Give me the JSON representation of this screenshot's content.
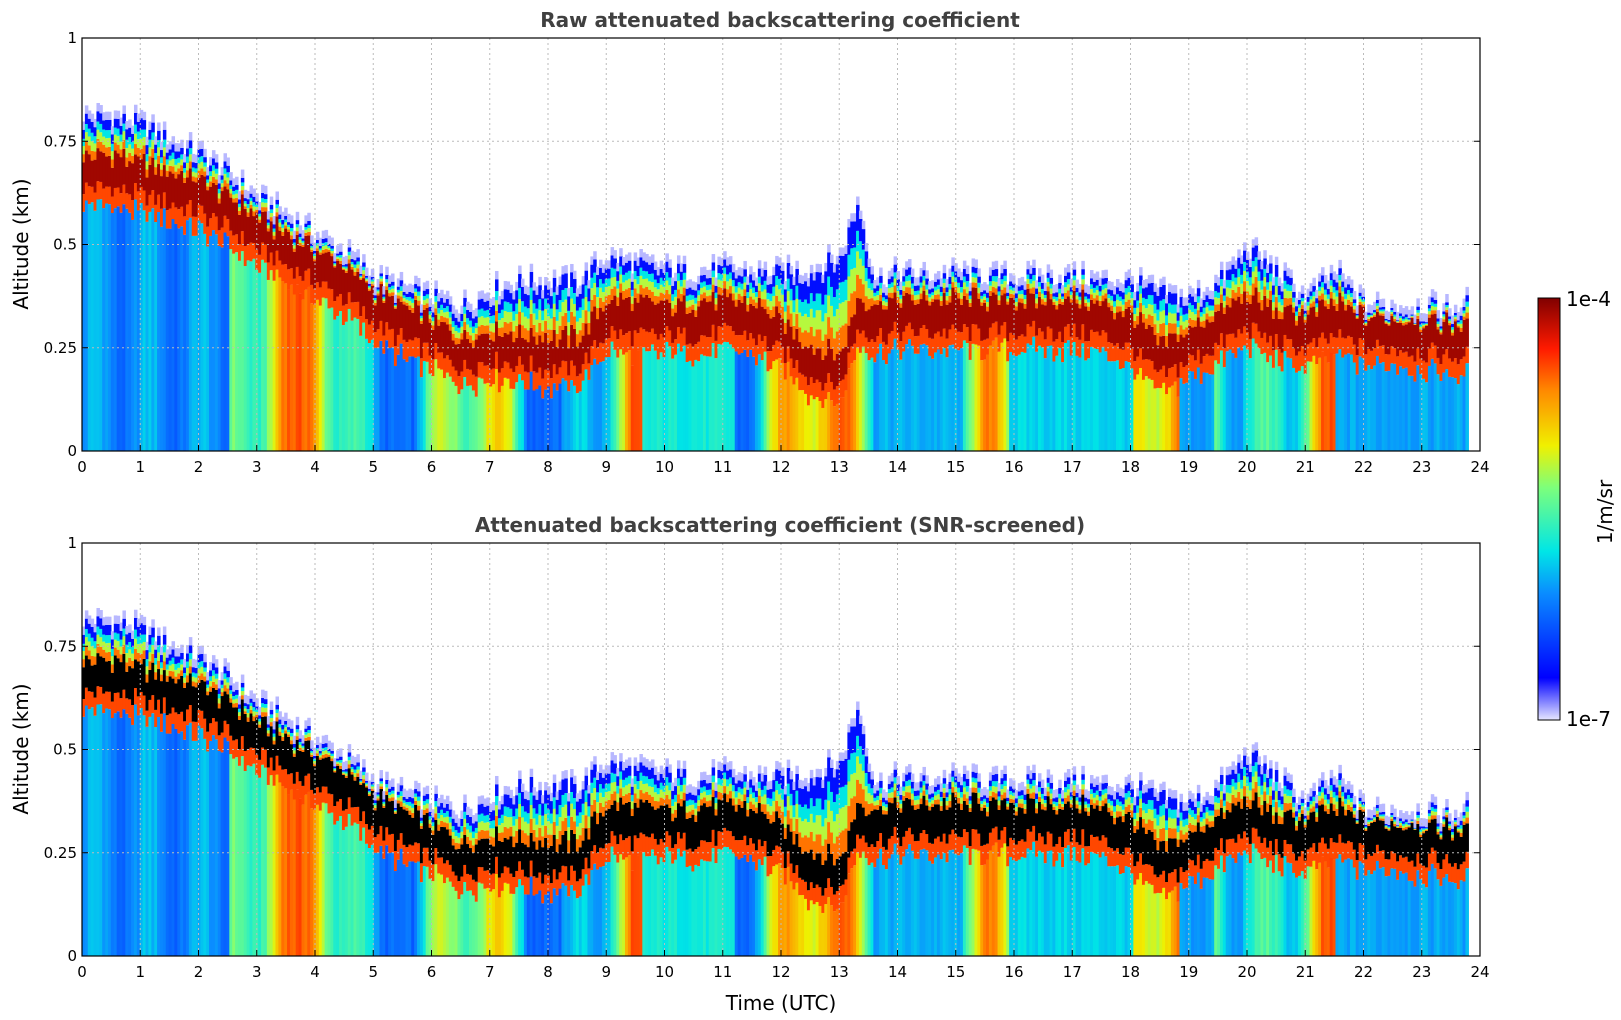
{
  "chart_data": [
    {
      "type": "heatmap",
      "title": "Raw attenuated backscattering coefficient",
      "xlabel": "",
      "ylabel": "Altitude (km)",
      "xlim": [
        0,
        24
      ],
      "ylim": [
        0,
        1
      ],
      "x_ticks": [
        "0",
        "1",
        "2",
        "3",
        "4",
        "5",
        "6",
        "7",
        "8",
        "9",
        "10",
        "11",
        "12",
        "13",
        "14",
        "15",
        "16",
        "17",
        "18",
        "19",
        "20",
        "21",
        "22",
        "23",
        "24"
      ],
      "y_ticks": [
        "0",
        "0.25",
        "0.5",
        "0.75",
        "1"
      ],
      "grid": true,
      "screened": false
    },
    {
      "type": "heatmap",
      "title": "Attenuated backscattering coefficient (SNR-screened)",
      "xlabel": "Time (UTC)",
      "ylabel": "Altitude (km)",
      "xlim": [
        0,
        24
      ],
      "ylim": [
        0,
        1
      ],
      "x_ticks": [
        "0",
        "1",
        "2",
        "3",
        "4",
        "5",
        "6",
        "7",
        "8",
        "9",
        "10",
        "11",
        "12",
        "13",
        "14",
        "15",
        "16",
        "17",
        "18",
        "19",
        "20",
        "21",
        "22",
        "23",
        "24"
      ],
      "y_ticks": [
        "0",
        "0.25",
        "0.5",
        "0.75",
        "1"
      ],
      "grid": true,
      "screened": true
    }
  ],
  "colorbar": {
    "label": "1/m/sr",
    "max_label": "1e-4",
    "min_label": "1e-7",
    "range_log10": [
      -7,
      -4
    ]
  },
  "layer_profile": {
    "hours": [
      0,
      0.5,
      1,
      1.5,
      2,
      2.5,
      3,
      3.5,
      4,
      4.5,
      5,
      5.5,
      6,
      6.5,
      7,
      7.5,
      8,
      8.5,
      9,
      9.5,
      10,
      10.5,
      11,
      11.5,
      12,
      12.5,
      13,
      13.3,
      13.6,
      14,
      14.5,
      15,
      15.5,
      16,
      16.5,
      17,
      17.5,
      18,
      18.5,
      19,
      19.5,
      20,
      20.5,
      21,
      21.5,
      22,
      22.5,
      23,
      23.5,
      23.8
    ],
    "center_km": [
      0.66,
      0.66,
      0.64,
      0.62,
      0.6,
      0.56,
      0.51,
      0.47,
      0.43,
      0.39,
      0.33,
      0.29,
      0.26,
      0.22,
      0.24,
      0.23,
      0.22,
      0.22,
      0.31,
      0.3,
      0.3,
      0.3,
      0.31,
      0.3,
      0.26,
      0.2,
      0.18,
      0.32,
      0.3,
      0.31,
      0.31,
      0.31,
      0.31,
      0.31,
      0.31,
      0.31,
      0.3,
      0.27,
      0.2,
      0.24,
      0.28,
      0.32,
      0.28,
      0.27,
      0.3,
      0.27,
      0.27,
      0.26,
      0.25,
      0.25
    ],
    "top_km": [
      0.8,
      0.8,
      0.78,
      0.74,
      0.71,
      0.66,
      0.6,
      0.56,
      0.51,
      0.47,
      0.41,
      0.38,
      0.36,
      0.34,
      0.38,
      0.4,
      0.4,
      0.4,
      0.46,
      0.44,
      0.43,
      0.42,
      0.43,
      0.42,
      0.42,
      0.43,
      0.46,
      0.6,
      0.4,
      0.42,
      0.41,
      0.42,
      0.41,
      0.41,
      0.41,
      0.41,
      0.4,
      0.4,
      0.37,
      0.36,
      0.4,
      0.48,
      0.42,
      0.36,
      0.42,
      0.34,
      0.34,
      0.34,
      0.33,
      0.35
    ]
  }
}
